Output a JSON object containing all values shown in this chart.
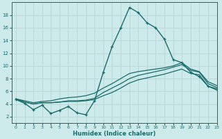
{
  "xlabel": "Humidex (Indice chaleur)",
  "bg_color": "#cdeaea",
  "grid_color": "#b8d4d4",
  "line_color": "#1a6b6b",
  "x_values": [
    0,
    1,
    2,
    3,
    4,
    5,
    6,
    7,
    8,
    9,
    10,
    11,
    12,
    13,
    14,
    15,
    16,
    17,
    18,
    19,
    20,
    21,
    22,
    23
  ],
  "line1_y": [
    4.7,
    4.1,
    3.1,
    3.8,
    2.5,
    3.0,
    3.6,
    2.6,
    2.3,
    4.5,
    9.0,
    13.0,
    16.0,
    19.2,
    18.4,
    16.8,
    16.0,
    14.2,
    11.0,
    10.5,
    9.0,
    8.3,
    6.8,
    6.2
  ],
  "line2_y": [
    4.8,
    4.3,
    4.0,
    4.2,
    4.2,
    4.3,
    4.4,
    4.4,
    4.5,
    4.7,
    5.3,
    5.8,
    6.5,
    7.3,
    7.8,
    8.1,
    8.4,
    8.7,
    9.1,
    9.5,
    8.8,
    8.6,
    6.8,
    6.4
  ],
  "line3_y": [
    4.8,
    4.3,
    4.0,
    4.2,
    4.2,
    4.3,
    4.5,
    4.5,
    4.6,
    4.9,
    5.8,
    6.5,
    7.2,
    8.0,
    8.5,
    8.8,
    9.1,
    9.4,
    9.8,
    10.2,
    9.3,
    9.0,
    7.2,
    6.6
  ],
  "line4_y": [
    4.8,
    4.5,
    4.2,
    4.4,
    4.5,
    4.8,
    5.0,
    5.1,
    5.3,
    5.7,
    6.5,
    7.2,
    8.0,
    8.8,
    9.1,
    9.3,
    9.5,
    9.7,
    10.0,
    10.5,
    9.5,
    9.1,
    7.5,
    6.9
  ],
  "ylim": [
    1,
    20
  ],
  "xlim": [
    -0.5,
    23
  ],
  "yticks": [
    2,
    4,
    6,
    8,
    10,
    12,
    14,
    16,
    18
  ],
  "xticks": [
    0,
    1,
    2,
    3,
    4,
    5,
    6,
    7,
    8,
    9,
    10,
    11,
    12,
    13,
    14,
    15,
    16,
    17,
    18,
    19,
    20,
    21,
    22,
    23
  ]
}
